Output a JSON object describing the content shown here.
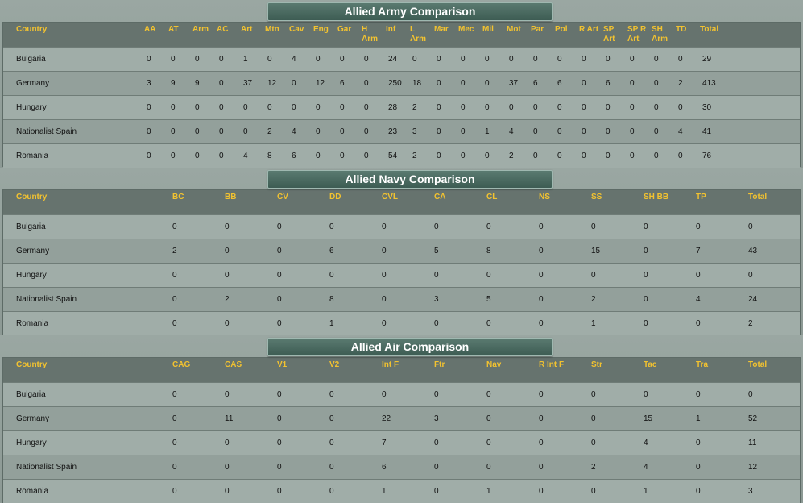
{
  "army": {
    "title": "Allied Army Comparison",
    "headers": [
      "Country",
      "AA",
      "AT",
      "Arm",
      "AC",
      "Art",
      "Mtn",
      "Cav",
      "Eng",
      "Gar",
      "H\nArm",
      "Inf",
      "L\nArm",
      "Mar",
      "Mec",
      "Mil",
      "Mot",
      "Par",
      "Pol",
      "R Art",
      "SP\nArt",
      "SP R\nArt",
      "SH\nArm",
      "TD",
      "Total"
    ],
    "rows": [
      [
        "Bulgaria",
        "0",
        "0",
        "0",
        "0",
        "1",
        "0",
        "4",
        "0",
        "0",
        "0",
        "24",
        "0",
        "0",
        "0",
        "0",
        "0",
        "0",
        "0",
        "0",
        "0",
        "0",
        "0",
        "0",
        "29"
      ],
      [
        "Germany",
        "3",
        "9",
        "9",
        "0",
        "37",
        "12",
        "0",
        "12",
        "6",
        "0",
        "250",
        "18",
        "0",
        "0",
        "0",
        "37",
        "6",
        "6",
        "0",
        "6",
        "0",
        "0",
        "2",
        "413"
      ],
      [
        "Hungary",
        "0",
        "0",
        "0",
        "0",
        "0",
        "0",
        "0",
        "0",
        "0",
        "0",
        "28",
        "2",
        "0",
        "0",
        "0",
        "0",
        "0",
        "0",
        "0",
        "0",
        "0",
        "0",
        "0",
        "30"
      ],
      [
        "Nationalist Spain",
        "0",
        "0",
        "0",
        "0",
        "0",
        "2",
        "4",
        "0",
        "0",
        "0",
        "23",
        "3",
        "0",
        "0",
        "1",
        "4",
        "0",
        "0",
        "0",
        "0",
        "0",
        "0",
        "4",
        "41"
      ],
      [
        "Romania",
        "0",
        "0",
        "0",
        "0",
        "4",
        "8",
        "6",
        "0",
        "0",
        "0",
        "54",
        "2",
        "0",
        "0",
        "0",
        "2",
        "0",
        "0",
        "0",
        "0",
        "0",
        "0",
        "0",
        "76"
      ]
    ]
  },
  "navy": {
    "title": "Allied Navy Comparison",
    "headers": [
      "Country",
      "BC",
      "BB",
      "CV",
      "DD",
      "CVL",
      "CA",
      "CL",
      "NS",
      "SS",
      "SH BB",
      "TP",
      "Total"
    ],
    "rows": [
      [
        "Bulgaria",
        "0",
        "0",
        "0",
        "0",
        "0",
        "0",
        "0",
        "0",
        "0",
        "0",
        "0",
        "0"
      ],
      [
        "Germany",
        "2",
        "0",
        "0",
        "6",
        "0",
        "5",
        "8",
        "0",
        "15",
        "0",
        "7",
        "43"
      ],
      [
        "Hungary",
        "0",
        "0",
        "0",
        "0",
        "0",
        "0",
        "0",
        "0",
        "0",
        "0",
        "0",
        "0"
      ],
      [
        "Nationalist Spain",
        "0",
        "2",
        "0",
        "8",
        "0",
        "3",
        "5",
        "0",
        "2",
        "0",
        "4",
        "24"
      ],
      [
        "Romania",
        "0",
        "0",
        "0",
        "1",
        "0",
        "0",
        "0",
        "0",
        "1",
        "0",
        "0",
        "2"
      ]
    ]
  },
  "air": {
    "title": "Allied Air Comparison",
    "headers": [
      "Country",
      "CAG",
      "CAS",
      "V1",
      "V2",
      "Int F",
      "Ftr",
      "Nav",
      "R Int F",
      "Str",
      "Tac",
      "Tra",
      "Total"
    ],
    "rows": [
      [
        "Bulgaria",
        "0",
        "0",
        "0",
        "0",
        "0",
        "0",
        "0",
        "0",
        "0",
        "0",
        "0",
        "0"
      ],
      [
        "Germany",
        "0",
        "11",
        "0",
        "0",
        "22",
        "3",
        "0",
        "0",
        "0",
        "15",
        "1",
        "52"
      ],
      [
        "Hungary",
        "0",
        "0",
        "0",
        "0",
        "7",
        "0",
        "0",
        "0",
        "0",
        "4",
        "0",
        "11"
      ],
      [
        "Nationalist Spain",
        "0",
        "0",
        "0",
        "0",
        "6",
        "0",
        "0",
        "0",
        "2",
        "4",
        "0",
        "12"
      ],
      [
        "Romania",
        "0",
        "0",
        "0",
        "0",
        "1",
        "0",
        "1",
        "0",
        "0",
        "1",
        "0",
        "3"
      ]
    ]
  },
  "colors": {
    "header_text": "#f2c230",
    "title_bg": "#3d5c53",
    "header_bg": "#66736e"
  }
}
